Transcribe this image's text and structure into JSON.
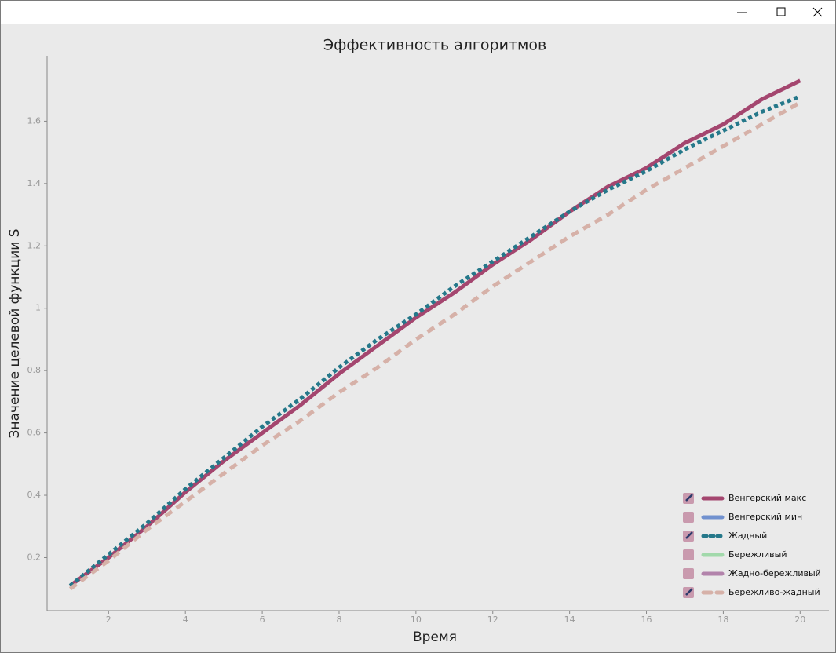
{
  "chart_data": {
    "type": "line",
    "title": "Эффективность алгоритмов",
    "x_label": "Время",
    "y_label": "Значение целевой функции S",
    "x": [
      1,
      2,
      3,
      4,
      5,
      6,
      7,
      8,
      9,
      10,
      11,
      12,
      13,
      14,
      15,
      16,
      17,
      18,
      19,
      20
    ],
    "xlim": [
      0.4,
      20.75
    ],
    "xticks": [
      2,
      4,
      6,
      8,
      10,
      12,
      14,
      16,
      18,
      20
    ],
    "ylim": [
      0.03,
      1.81
    ],
    "yticks": [
      0.2,
      0.4,
      0.6,
      0.8,
      1,
      1.2,
      1.4,
      1.6
    ],
    "legend": "lower right",
    "series": [
      {
        "name": "Венгерский макс",
        "color": "#a4466f",
        "style": "solid",
        "checked": true,
        "values": [
          0.11,
          0.2,
          0.3,
          0.41,
          0.51,
          0.6,
          0.69,
          0.79,
          0.88,
          0.97,
          1.05,
          1.14,
          1.22,
          1.31,
          1.39,
          1.45,
          1.53,
          1.59,
          1.67,
          1.73
        ]
      },
      {
        "name": "Венгерский мин",
        "color": "#7191cf",
        "style": "solid",
        "checked": false
      },
      {
        "name": "Жадный",
        "color": "#25788a",
        "style": "dotted",
        "checked": true,
        "values": [
          0.11,
          0.21,
          0.31,
          0.42,
          0.52,
          0.62,
          0.71,
          0.81,
          0.9,
          0.98,
          1.07,
          1.15,
          1.23,
          1.31,
          1.38,
          1.44,
          1.51,
          1.57,
          1.63,
          1.68
        ]
      },
      {
        "name": "Бережливый",
        "color": "#a2d9ab",
        "style": "solid",
        "checked": false
      },
      {
        "name": "Жадно-бережливый",
        "color": "#b283ab",
        "style": "solid",
        "checked": false
      },
      {
        "name": "Бережливо-жадный",
        "color": "#d6b1a8",
        "style": "dashed",
        "checked": true,
        "values": [
          0.1,
          0.19,
          0.29,
          0.38,
          0.47,
          0.56,
          0.64,
          0.73,
          0.81,
          0.9,
          0.98,
          1.07,
          1.15,
          1.23,
          1.3,
          1.38,
          1.45,
          1.52,
          1.59,
          1.66
        ]
      }
    ]
  }
}
